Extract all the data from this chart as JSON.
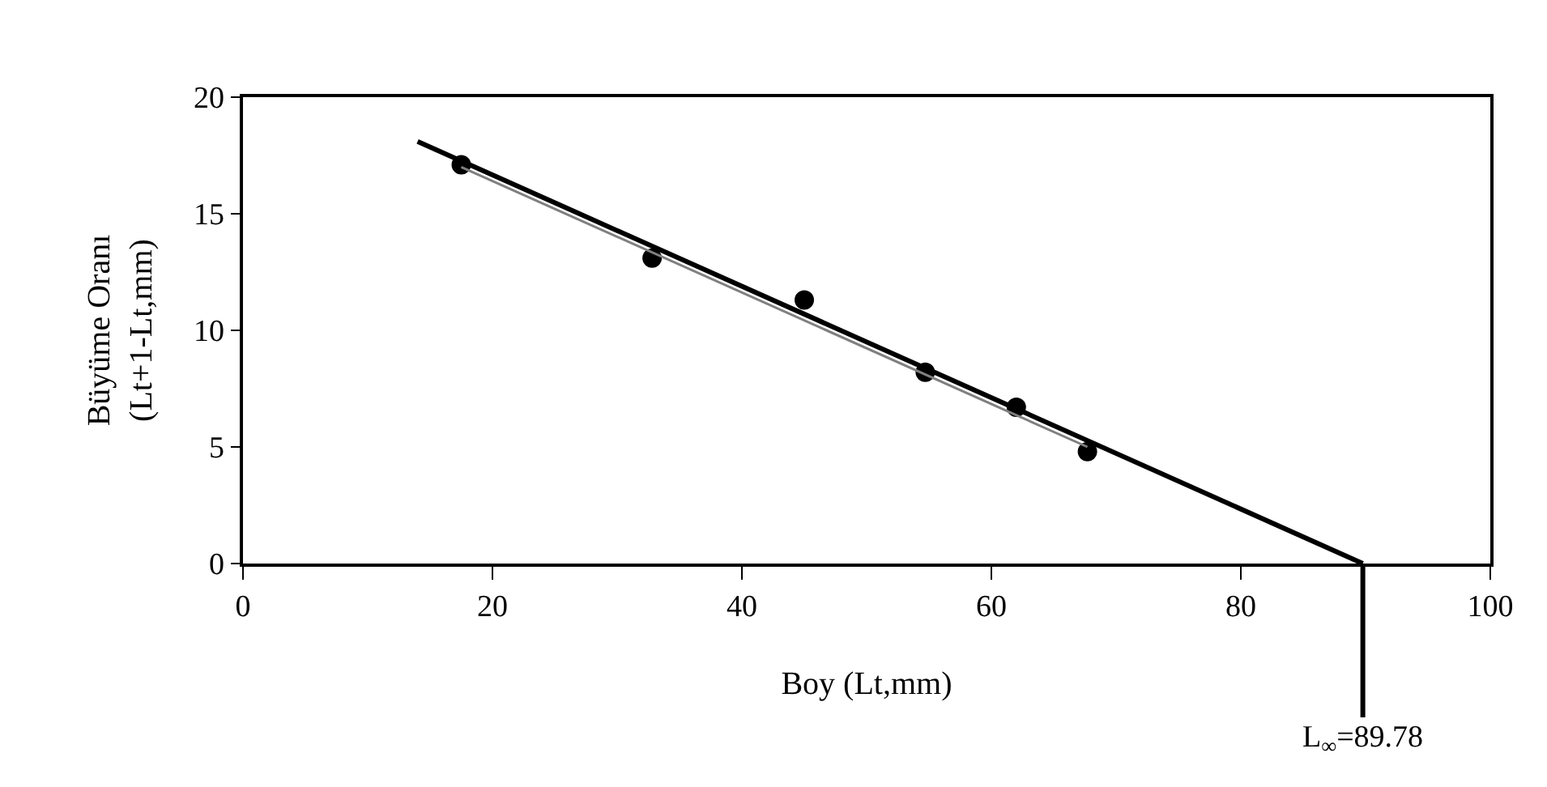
{
  "chart_data": {
    "type": "scatter",
    "xlabel": "Boy (Lt,mm)",
    "ylabel": "Büyüme Oranı\n(Lt+1-Lt,mm)",
    "xlim": [
      0,
      100
    ],
    "xticks": [
      0,
      20,
      40,
      60,
      80,
      100
    ],
    "ylim": [
      0,
      20
    ],
    "yticks": [
      0,
      5,
      10,
      15,
      20
    ],
    "grid": false,
    "legend": false,
    "series": [
      {
        "marker": "circle",
        "color": "#000000",
        "x": [
          17.5,
          32.8,
          45,
          54.7,
          62,
          67.7
        ],
        "values": [
          17.1,
          13.1,
          11.3,
          8.2,
          6.7,
          4.8
        ]
      },
      {
        "type": "line",
        "marker": "none",
        "color": "#7f7f7f",
        "x": [
          17.5,
          67.7
        ],
        "values": [
          17.0,
          5.0
        ]
      },
      {
        "type": "line",
        "marker": "none",
        "color": "#000000",
        "x": [
          14,
          89.78
        ],
        "values": [
          18.1,
          0
        ]
      }
    ],
    "annotations": [
      {
        "text": "L$_{∞}$=89.78",
        "x": 89.78,
        "y": 0
      }
    ]
  }
}
